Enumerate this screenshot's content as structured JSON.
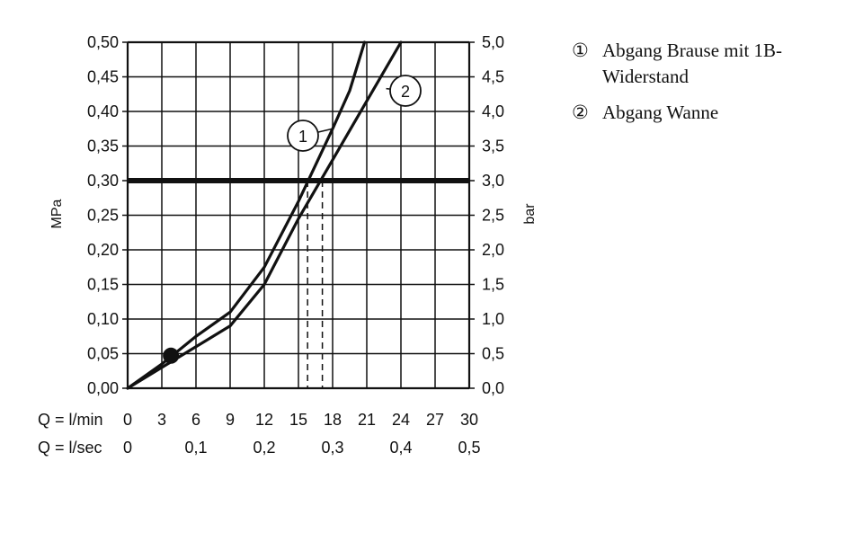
{
  "chart_data": {
    "type": "line",
    "y_left_label": "MPa",
    "y_right_label": "bar",
    "x_flow_label_min": "Q = l/min",
    "x_flow_label_sec": "Q = l/sec",
    "y_left_ticks": [
      "0,00",
      "0,05",
      "0,10",
      "0,15",
      "0,20",
      "0,25",
      "0,30",
      "0,35",
      "0,40",
      "0,45",
      "0,50"
    ],
    "y_right_ticks": [
      "0,0",
      "0,5",
      "1,0",
      "1,5",
      "2,0",
      "2,5",
      "3,0",
      "3,5",
      "4,0",
      "4,5",
      "5,0"
    ],
    "x_ticks_min": [
      "0",
      "3",
      "6",
      "9",
      "12",
      "15",
      "18",
      "21",
      "24",
      "27",
      "30"
    ],
    "x_ticks_sec": [
      {
        "x": 0,
        "label": "0"
      },
      {
        "x": 6,
        "label": "0,1"
      },
      {
        "x": 12,
        "label": "0,2"
      },
      {
        "x": 18,
        "label": "0,3"
      },
      {
        "x": 24,
        "label": "0,4"
      },
      {
        "x": 30,
        "label": "0,5"
      }
    ],
    "xlim": [
      0,
      30
    ],
    "ylim": [
      0,
      0.5
    ],
    "grid": true,
    "reference_line_mpa": 0.3,
    "series": [
      {
        "name": "1",
        "x": [
          0,
          3,
          6,
          9,
          12,
          15,
          18,
          19.5,
          20.8
        ],
        "y": [
          0,
          0.035,
          0.075,
          0.11,
          0.175,
          0.27,
          0.375,
          0.43,
          0.5
        ]
      },
      {
        "name": "2",
        "x": [
          0,
          3,
          6,
          9,
          12,
          15,
          18,
          21,
          24
        ],
        "y": [
          0,
          0.03,
          0.06,
          0.09,
          0.15,
          0.245,
          0.33,
          0.415,
          0.5
        ]
      }
    ],
    "marker_point": {
      "x": 3.8,
      "y": 0.047
    },
    "dashed_verticals": [
      {
        "x": 15.8,
        "y": 0.3
      },
      {
        "x": 17.1,
        "y": 0.3
      }
    ],
    "callouts": [
      {
        "label": "1",
        "series_index": 0,
        "x": 18.0,
        "y": 0.375
      },
      {
        "label": "2",
        "series_index": 1,
        "x": 22.7,
        "y": 0.433
      }
    ]
  },
  "legend": [
    {
      "num": "①",
      "text": "Abgang Brause mit 1B-Widerstand"
    },
    {
      "num": "②",
      "text": "Abgang Wanne"
    }
  ]
}
